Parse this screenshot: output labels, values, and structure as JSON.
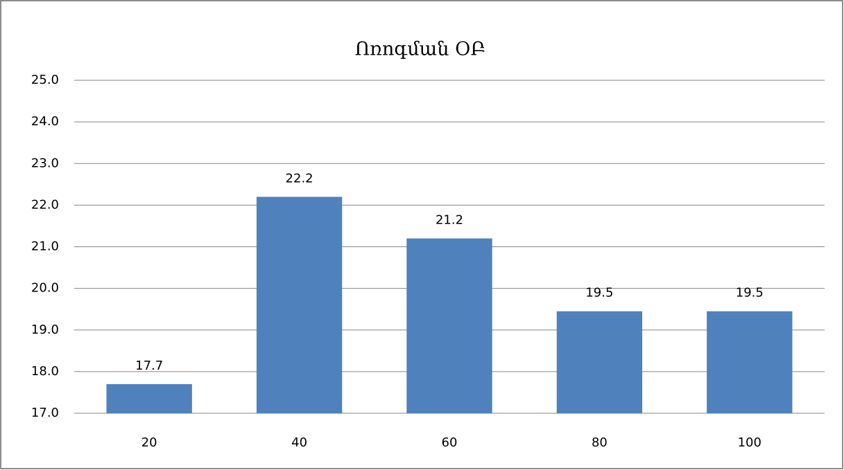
{
  "chart_data": {
    "type": "bar",
    "title": "Ոռոգման ՕԲ",
    "categories": [
      "20",
      "40",
      "60",
      "80",
      "100"
    ],
    "values": [
      17.7,
      22.2,
      21.2,
      19.45,
      19.45
    ],
    "value_labels": [
      "17.7",
      "22.2",
      "21.2",
      "19.5",
      "19.5"
    ],
    "color": "#4f81bd",
    "ylim": [
      17,
      25
    ],
    "yticks": [
      {
        "value": 17,
        "label": "17.0"
      },
      {
        "value": 18,
        "label": "18.0"
      },
      {
        "value": 19,
        "label": "19.0"
      },
      {
        "value": 20,
        "label": "20.0"
      },
      {
        "value": 21,
        "label": "21.0"
      },
      {
        "value": 22,
        "label": "22.0"
      },
      {
        "value": 23,
        "label": "23.0"
      },
      {
        "value": 24,
        "label": "24.0"
      },
      {
        "value": 25,
        "label": "25.0"
      }
    ],
    "grid": true
  }
}
